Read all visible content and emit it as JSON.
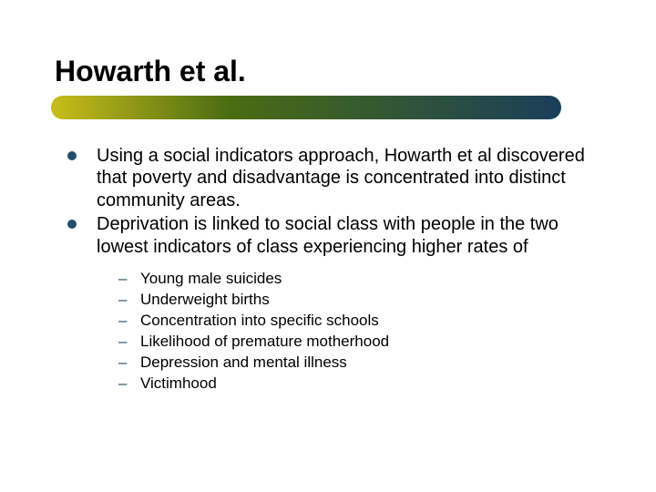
{
  "colors": {
    "title": "#000000",
    "body_text": "#000000",
    "bullet": "#204e6a",
    "dash": "#204e6a",
    "underline_gradient_from": "#c9bd1a",
    "underline_gradient_mid": "#4a6c12",
    "underline_gradient_to": "#1a3f5a",
    "background": "#ffffff"
  },
  "typography": {
    "title_fontsize": 32,
    "title_weight": "bold",
    "main_fontsize": 20,
    "sub_fontsize": 17,
    "font_family": "Arial"
  },
  "layout": {
    "slide_width": 720,
    "slide_height": 540,
    "underline_width": 560,
    "underline_height": 26,
    "underline_radius": 13
  },
  "title": "Howarth et al.",
  "main_bullets": [
    "Using a social indicators approach, Howarth et al discovered that poverty and disadvantage is concentrated into distinct community areas.",
    "Deprivation is linked to social class with people in the two lowest indicators of class experiencing higher rates of"
  ],
  "sub_bullets": [
    "Young male suicides",
    "Underweight births",
    "Concentration into specific schools",
    "Likelihood of premature motherhood",
    "Depression and mental illness",
    "Victimhood"
  ]
}
